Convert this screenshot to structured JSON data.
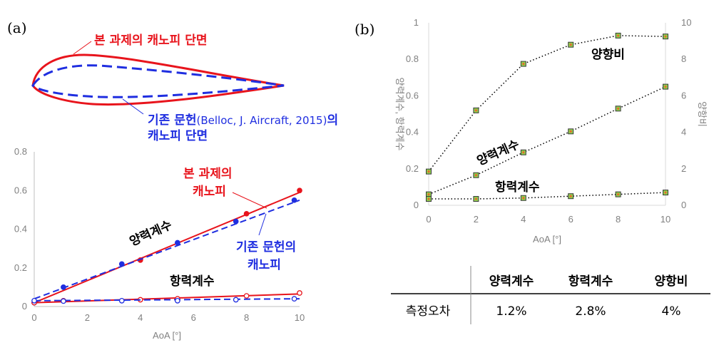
{
  "panel_a": {
    "label": "(a)",
    "airfoil_legend": {
      "this_work": "본 과제의 캐노피 단면",
      "reference_line1_prefix": "기존 문헌",
      "reference_line1_cite": "(Belloc, J. Aircraft, 2015)",
      "reference_line1_suffix": "의",
      "reference_line2": "캐노피 단면"
    },
    "annotations": {
      "this_work_line1": "본 과제의",
      "this_work_line2": "캐노피",
      "reference_line1": "기존 문헌의",
      "reference_line2": "캐노피",
      "lift": "양력계수",
      "drag": "항력계수"
    },
    "colors": {
      "this_work": "#e8141c",
      "reference": "#1f2ee0"
    }
  },
  "panel_b": {
    "label": "(b)",
    "annotations": {
      "ld": "양향비",
      "lift": "양력계수",
      "drag": "항력계수"
    }
  },
  "table": {
    "headers": [
      "양력계수",
      "항력계수",
      "양항비"
    ],
    "row_label": "측정오차",
    "values": [
      "1.2%",
      "2.8%",
      "4%"
    ]
  },
  "chart_data": [
    {
      "type": "scatter",
      "xlabel": "AoA [°]",
      "xlim": [
        0,
        10
      ],
      "ylim": [
        0,
        0.8
      ],
      "x_ticks": [
        "0",
        "2",
        "4",
        "6",
        "8",
        "10"
      ],
      "y_ticks": [
        "0",
        "0.2",
        "0.4",
        "0.6",
        "0.8"
      ],
      "series": [
        {
          "name": "본 과제의 캐노피",
          "kind": "lift",
          "color": "#e8141c",
          "x": [
            0,
            4,
            8,
            10
          ],
          "y": [
            0.02,
            0.24,
            0.48,
            0.6
          ],
          "fit": [
            [
              0,
              0.02
            ],
            [
              10,
              0.59
            ]
          ]
        },
        {
          "name": "기존 문헌의 캐노피",
          "kind": "lift",
          "color": "#1f2ee0",
          "x": [
            0,
            1.1,
            3.3,
            5.4,
            7.6,
            9.8
          ],
          "y": [
            0.02,
            0.1,
            0.22,
            0.33,
            0.44,
            0.55
          ],
          "fit": [
            [
              0,
              0.04
            ],
            [
              10,
              0.55
            ]
          ]
        },
        {
          "name": "본 과제의 캐노피",
          "kind": "drag",
          "color": "#e8141c",
          "x": [
            0,
            1.1,
            4,
            5.4,
            8,
            10
          ],
          "y": [
            0.02,
            0.03,
            0.035,
            0.04,
            0.055,
            0.07
          ],
          "fit": [
            [
              0,
              0.02
            ],
            [
              10,
              0.065
            ]
          ]
        },
        {
          "name": "기존 문헌의 캐노피",
          "kind": "drag",
          "color": "#1f2ee0",
          "x": [
            0,
            1.1,
            3.3,
            5.4,
            7.6,
            9.8
          ],
          "y": [
            0.03,
            0.028,
            0.03,
            0.03,
            0.035,
            0.04
          ],
          "fit": [
            [
              0,
              0.03
            ],
            [
              10,
              0.04
            ]
          ]
        }
      ]
    },
    {
      "type": "line",
      "xlabel": "AoA [°]",
      "ylabel_left": "양력계수, 항력계수",
      "ylabel_right": "양항비",
      "x": [
        0,
        2,
        4,
        6,
        8,
        10
      ],
      "xlim": [
        0,
        10
      ],
      "ylim_left": [
        0,
        1
      ],
      "ylim_right": [
        0,
        10
      ],
      "x_ticks": [
        "0",
        "2",
        "4",
        "6",
        "8",
        "10"
      ],
      "y_ticks_left": [
        "0",
        "0.2",
        "0.4",
        "0.6",
        "0.8",
        "1"
      ],
      "y_ticks_right": [
        "0",
        "2",
        "4",
        "6",
        "8",
        "10"
      ],
      "series": [
        {
          "name": "양항비",
          "axis": "right",
          "values": [
            1.85,
            5.2,
            7.75,
            8.8,
            9.3,
            9.25
          ]
        },
        {
          "name": "양력계수",
          "axis": "left",
          "values": [
            0.06,
            0.165,
            0.29,
            0.405,
            0.53,
            0.65
          ]
        },
        {
          "name": "항력계수",
          "axis": "left",
          "values": [
            0.035,
            0.035,
            0.04,
            0.05,
            0.06,
            0.07
          ]
        }
      ]
    }
  ]
}
